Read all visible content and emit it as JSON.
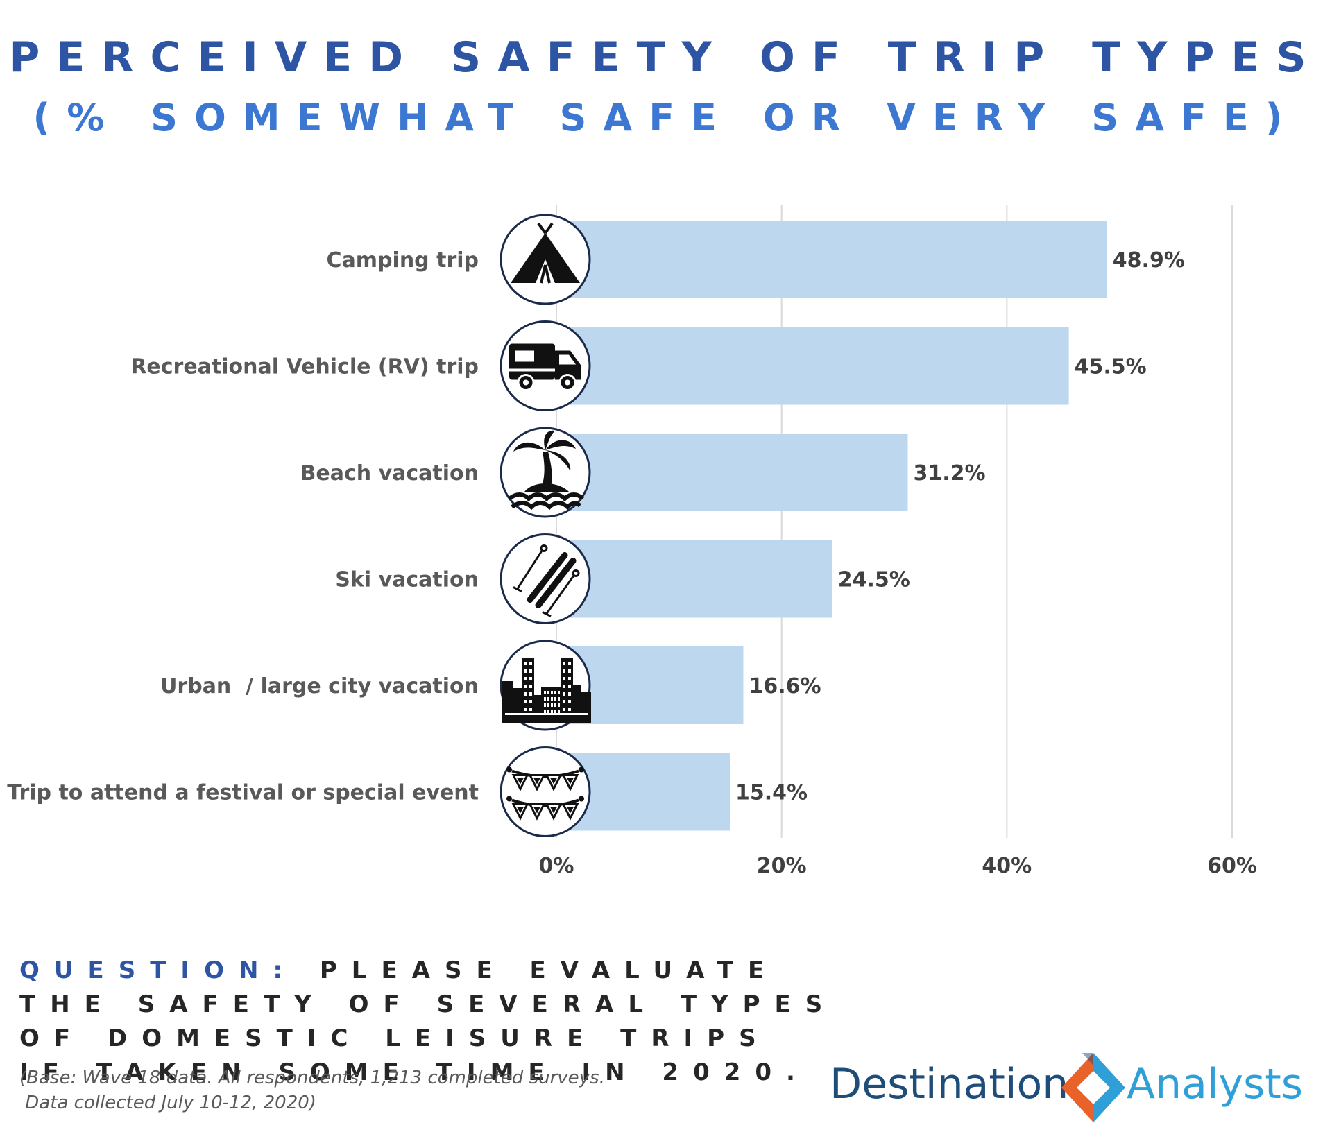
{
  "title": {
    "line1": "PERCEIVED SAFETY OF TRIP TYPES",
    "line2": "(% SOMEWHAT SAFE OR VERY SAFE)"
  },
  "chart_data": {
    "type": "bar",
    "orientation": "horizontal",
    "categories": [
      "Camping trip",
      "Recreational Vehicle (RV) trip",
      "Beach vacation",
      "Ski vacation",
      "Urban  / large city vacation",
      "Trip to attend a festival or special event"
    ],
    "values": [
      48.9,
      45.5,
      31.2,
      24.5,
      16.6,
      15.4
    ],
    "value_labels": [
      "48.9%",
      "45.5%",
      "31.2%",
      "24.5%",
      "16.6%",
      "15.4%"
    ],
    "icons": [
      "tent-icon",
      "rv-icon",
      "palm-island-icon",
      "ski-icon",
      "city-skyline-icon",
      "bunting-icon"
    ],
    "xlim": [
      0,
      60
    ],
    "ticks": [
      0,
      20,
      40,
      60
    ],
    "tick_labels": [
      "0%",
      "20%",
      "40%",
      "60%"
    ],
    "grid": true,
    "bar_color": "#bdd7ee",
    "grid_color": "#d9d9d9"
  },
  "question": {
    "label": "QUESTION:",
    "text": "PLEASE EVALUATE THE SAFETY OF SEVERAL TYPES OF DOMESTIC LEISURE TRIPS IF TAKEN SOME TIME IN 2020."
  },
  "footnote": {
    "line1": "(Base: Wave 18 data. All respondents, 1,213 completed surveys.",
    "line2": " Data collected July 10-12, 2020)"
  },
  "logo": {
    "word1": "Destination",
    "word2": "Analysts",
    "color1": "#1f4d7a",
    "color2": "#2f9fd8",
    "mark_colors": [
      "#e8622a",
      "#2f9fd8"
    ]
  }
}
